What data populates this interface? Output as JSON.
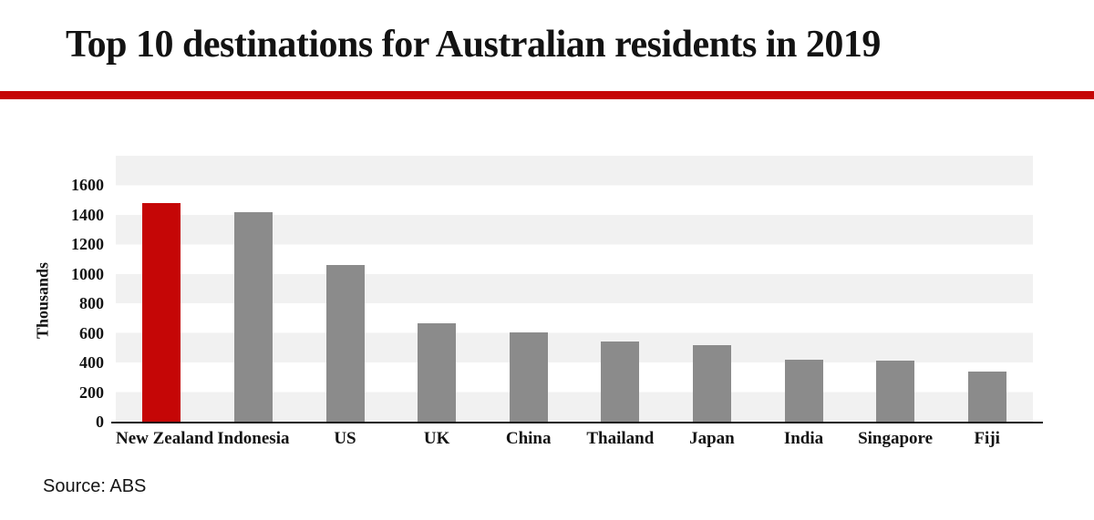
{
  "title": {
    "text": "Top 10 destinations for Australian residents in 2019"
  },
  "source_note": "Source: ABS",
  "colors": {
    "accent_red": "#c50606",
    "bar_gray": "#8b8b8b",
    "stripe_gray": "#f1f1f1",
    "axis_black": "#131313"
  },
  "chart_data": {
    "type": "bar",
    "title": "Top 10 destinations for Australian residents in 2019",
    "categories": [
      "New Zealand",
      "Indonesia",
      "US",
      "UK",
      "China",
      "Thailand",
      "Japan",
      "India",
      "Singapore",
      "Fiji"
    ],
    "values": [
      1480,
      1420,
      1060,
      665,
      605,
      540,
      520,
      420,
      415,
      340
    ],
    "ylabel": "Thousands",
    "xlabel": "",
    "yticks": [
      0,
      200,
      400,
      600,
      800,
      1000,
      1200,
      1400,
      1600
    ],
    "ylim": [
      0,
      1800
    ],
    "grid": "alternating horizontal bands, no gridlines",
    "legend_position": "none",
    "highlight": {
      "category": "New Zealand",
      "color": "#c50606"
    },
    "bar_color": "#8b8b8b"
  }
}
